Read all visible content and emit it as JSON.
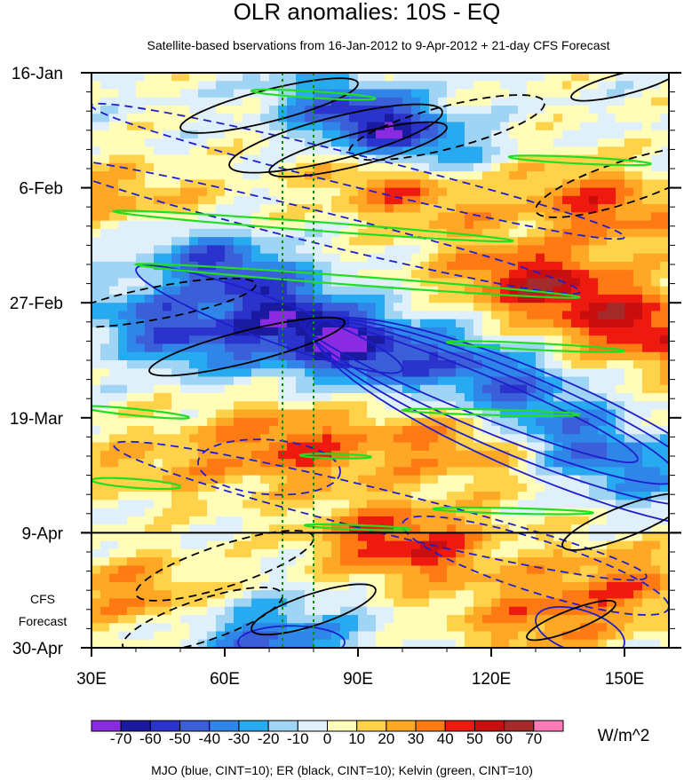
{
  "chart_data": {
    "type": "heatmap",
    "title": "OLR anomalies: 10S - EQ",
    "subtitle": "Satellite-based bservations from 16-Jan-2012 to 9-Apr-2012 + 21-day CFS Forecast",
    "xlabel": "",
    "ylabel": "",
    "x_range": [
      30,
      160
    ],
    "x_ticks": [
      {
        "value": 30,
        "label": "30E"
      },
      {
        "value": 60,
        "label": "60E"
      },
      {
        "value": 90,
        "label": "90E"
      },
      {
        "value": 120,
        "label": "120E"
      },
      {
        "value": 150,
        "label": "150E"
      }
    ],
    "y_range_days": [
      0,
      105
    ],
    "y_ticks": [
      {
        "value": 0,
        "label": "16-Jan"
      },
      {
        "value": 21,
        "label": "6-Feb"
      },
      {
        "value": 42,
        "label": "27-Feb"
      },
      {
        "value": 63,
        "label": "19-Mar"
      },
      {
        "value": 84,
        "label": "9-Apr"
      },
      {
        "value": 105,
        "label": "30-Apr"
      }
    ],
    "forecast_start_day": 84,
    "forecast_label_lines": [
      "CFS",
      "Forecast"
    ],
    "reference_lon_lines": [
      73,
      80
    ],
    "colorbar": {
      "unit_label": "W/m^2",
      "levels": [
        -70,
        -60,
        -50,
        -40,
        -30,
        -20,
        -10,
        0,
        10,
        20,
        30,
        40,
        50,
        60,
        70
      ],
      "tick_labels": [
        "-70",
        "-60",
        "-50",
        "-40",
        "-30",
        "-20",
        "-10",
        "0",
        "10",
        "20",
        "30",
        "40",
        "50",
        "60",
        "70"
      ],
      "colors": [
        "#8a2be2",
        "#1a1aa0",
        "#2a33cc",
        "#3a5fd8",
        "#2f86e8",
        "#27aaf0",
        "#9fd4f4",
        "#dff0fa",
        "#fffdb8",
        "#ffd24a",
        "#ffa826",
        "#ff7a12",
        "#ee1a10",
        "#c80e0e",
        "#a52a2a",
        "#ff7ab8"
      ]
    },
    "footer": "MJO (blue, CINT=10); ER (black, CINT=10); Kelvin (green, CINT=10)",
    "field_components": [
      {
        "lon": 95,
        "day": 10,
        "amp": -70,
        "slope_days_per_deg": 0.2
      },
      {
        "lon": 145,
        "day": 24,
        "amp": 40,
        "slope_days_per_deg": 0.15
      },
      {
        "lon": 40,
        "day": 24,
        "amp": 30,
        "slope_days_per_deg": 0.1
      },
      {
        "lon": 100,
        "day": 21,
        "amp": 40,
        "slope_days_per_deg": 0.15
      },
      {
        "lon": 60,
        "day": 35,
        "amp": -50,
        "slope_days_per_deg": 0.25
      },
      {
        "lon": 130,
        "day": 38,
        "amp": 50,
        "slope_days_per_deg": 0.05
      },
      {
        "lon": 85,
        "day": 49,
        "amp": -70,
        "slope_days_per_deg": 0.2
      },
      {
        "lon": 50,
        "day": 47,
        "amp": -50,
        "slope_days_per_deg": 0.15
      },
      {
        "lon": 120,
        "day": 55,
        "amp": -40,
        "slope_days_per_deg": 0.25
      },
      {
        "lon": 155,
        "day": 47,
        "amp": 50,
        "slope_days_per_deg": 0.1
      },
      {
        "lon": 75,
        "day": 68,
        "amp": 40,
        "slope_days_per_deg": 0.1
      },
      {
        "lon": 110,
        "day": 68,
        "amp": 30,
        "slope_days_per_deg": 0.15
      },
      {
        "lon": 145,
        "day": 70,
        "amp": -40,
        "slope_days_per_deg": 0.25
      },
      {
        "lon": 100,
        "day": 86,
        "amp": 50,
        "slope_days_per_deg": 0.05
      },
      {
        "lon": 45,
        "day": 72,
        "amp": 20,
        "slope_days_per_deg": 0.1
      },
      {
        "lon": 70,
        "day": 103,
        "amp": -40,
        "slope_days_per_deg": 0.0
      },
      {
        "lon": 130,
        "day": 100,
        "amp": 30,
        "slope_days_per_deg": 0.0
      },
      {
        "lon": 150,
        "day": 93,
        "amp": 30,
        "slope_days_per_deg": 0.05
      },
      {
        "lon": 40,
        "day": 95,
        "amp": 30,
        "slope_days_per_deg": 0.05
      }
    ],
    "contour_groups": [
      {
        "name": "MJO",
        "color": "#1e1ecc",
        "contours": [
          {
            "lon": 115,
            "day": 58,
            "a_deg": 38,
            "b_days": 4,
            "slope_days_per_deg": 0.33,
            "dashed": false
          },
          {
            "lon": 120,
            "day": 60,
            "a_deg": 42,
            "b_days": 6,
            "slope_days_per_deg": 0.33,
            "dashed": false
          },
          {
            "lon": 125,
            "day": 62,
            "a_deg": 46,
            "b_days": 8,
            "slope_days_per_deg": 0.33,
            "dashed": false
          },
          {
            "lon": 130,
            "day": 64,
            "a_deg": 50,
            "b_days": 10,
            "slope_days_per_deg": 0.33,
            "dashed": false
          },
          {
            "lon": 70,
            "day": 45,
            "a_deg": 30,
            "b_days": 4,
            "slope_days_per_deg": 0.3,
            "dashed": false
          },
          {
            "lon": 140,
            "day": 102,
            "a_deg": 10,
            "b_days": 4,
            "slope_days_per_deg": 0.2,
            "dashed": false
          },
          {
            "lon": 75,
            "day": 104,
            "a_deg": 12,
            "b_days": 3,
            "slope_days_per_deg": 0.0,
            "dashed": false
          },
          {
            "lon": 80,
            "day": 28,
            "a_deg": 60,
            "b_days": 3,
            "slope_days_per_deg": 0.2,
            "dashed": true
          },
          {
            "lon": 90,
            "day": 18,
            "a_deg": 60,
            "b_days": 3,
            "slope_days_per_deg": 0.2,
            "dashed": true
          },
          {
            "lon": 95,
            "day": 80,
            "a_deg": 60,
            "b_days": 4,
            "slope_days_per_deg": 0.2,
            "dashed": true
          },
          {
            "lon": 130,
            "day": 90,
            "a_deg": 30,
            "b_days": 5,
            "slope_days_per_deg": 0.25,
            "dashed": true
          },
          {
            "lon": 70,
            "day": 72,
            "a_deg": 16,
            "b_days": 5,
            "slope_days_per_deg": 0.05,
            "dashed": true
          }
        ]
      },
      {
        "name": "ER",
        "color": "#000000",
        "contours": [
          {
            "lon": 90,
            "day": 14,
            "a_deg": 20,
            "b_days": 3,
            "slope_days_per_deg": -0.2,
            "dashed": false
          },
          {
            "lon": 85,
            "day": 12,
            "a_deg": 24,
            "b_days": 4,
            "slope_days_per_deg": -0.2,
            "dashed": false
          },
          {
            "lon": 70,
            "day": 6,
            "a_deg": 20,
            "b_days": 3,
            "slope_days_per_deg": -0.2,
            "dashed": false
          },
          {
            "lon": 110,
            "day": 10,
            "a_deg": 22,
            "b_days": 4,
            "slope_days_per_deg": -0.2,
            "dashed": true
          },
          {
            "lon": 150,
            "day": 20,
            "a_deg": 20,
            "b_days": 4,
            "slope_days_per_deg": -0.25,
            "dashed": true
          },
          {
            "lon": 150,
            "day": 2,
            "a_deg": 12,
            "b_days": 2,
            "slope_days_per_deg": -0.2,
            "dashed": false
          },
          {
            "lon": 65,
            "day": 50,
            "a_deg": 22,
            "b_days": 3,
            "slope_days_per_deg": -0.2,
            "dashed": false
          },
          {
            "lon": 60,
            "day": 90,
            "a_deg": 20,
            "b_days": 4,
            "slope_days_per_deg": -0.25,
            "dashed": true
          },
          {
            "lon": 55,
            "day": 100,
            "a_deg": 18,
            "b_days": 4,
            "slope_days_per_deg": -0.25,
            "dashed": true
          },
          {
            "lon": 80,
            "day": 98,
            "a_deg": 14,
            "b_days": 3,
            "slope_days_per_deg": -0.25,
            "dashed": false
          },
          {
            "lon": 150,
            "day": 82,
            "a_deg": 14,
            "b_days": 3,
            "slope_days_per_deg": -0.3,
            "dashed": false
          },
          {
            "lon": 138,
            "day": 100,
            "a_deg": 10,
            "b_days": 2,
            "slope_days_per_deg": -0.3,
            "dashed": false
          },
          {
            "lon": 45,
            "day": 42,
            "a_deg": 22,
            "b_days": 3,
            "slope_days_per_deg": -0.15,
            "dashed": true
          }
        ]
      },
      {
        "name": "Kelvin",
        "color": "#22dd22",
        "contours": [
          {
            "lon": 80,
            "day": 4,
            "a_deg": 14,
            "b_days": 0.6,
            "slope_days_per_deg": 0.05,
            "dashed": false
          },
          {
            "lon": 140,
            "day": 16,
            "a_deg": 16,
            "b_days": 0.6,
            "slope_days_per_deg": 0.04,
            "dashed": false
          },
          {
            "lon": 80,
            "day": 28,
            "a_deg": 45,
            "b_days": 0.8,
            "slope_days_per_deg": 0.06,
            "dashed": false
          },
          {
            "lon": 90,
            "day": 38,
            "a_deg": 50,
            "b_days": 0.8,
            "slope_days_per_deg": 0.06,
            "dashed": false
          },
          {
            "lon": 130,
            "day": 50,
            "a_deg": 20,
            "b_days": 0.6,
            "slope_days_per_deg": 0.04,
            "dashed": false
          },
          {
            "lon": 120,
            "day": 62,
            "a_deg": 20,
            "b_days": 0.5,
            "slope_days_per_deg": 0.02,
            "dashed": false
          },
          {
            "lon": 40,
            "day": 62,
            "a_deg": 12,
            "b_days": 0.6,
            "slope_days_per_deg": 0.08,
            "dashed": false
          },
          {
            "lon": 125,
            "day": 80,
            "a_deg": 18,
            "b_days": 0.5,
            "slope_days_per_deg": 0.02,
            "dashed": false
          },
          {
            "lon": 40,
            "day": 75,
            "a_deg": 10,
            "b_days": 0.8,
            "slope_days_per_deg": 0.06,
            "dashed": false
          },
          {
            "lon": 90,
            "day": 83,
            "a_deg": 12,
            "b_days": 0.4,
            "slope_days_per_deg": 0.03,
            "dashed": false
          },
          {
            "lon": 85,
            "day": 70,
            "a_deg": 8,
            "b_days": 0.4,
            "slope_days_per_deg": 0.02,
            "dashed": false
          }
        ]
      }
    ]
  }
}
